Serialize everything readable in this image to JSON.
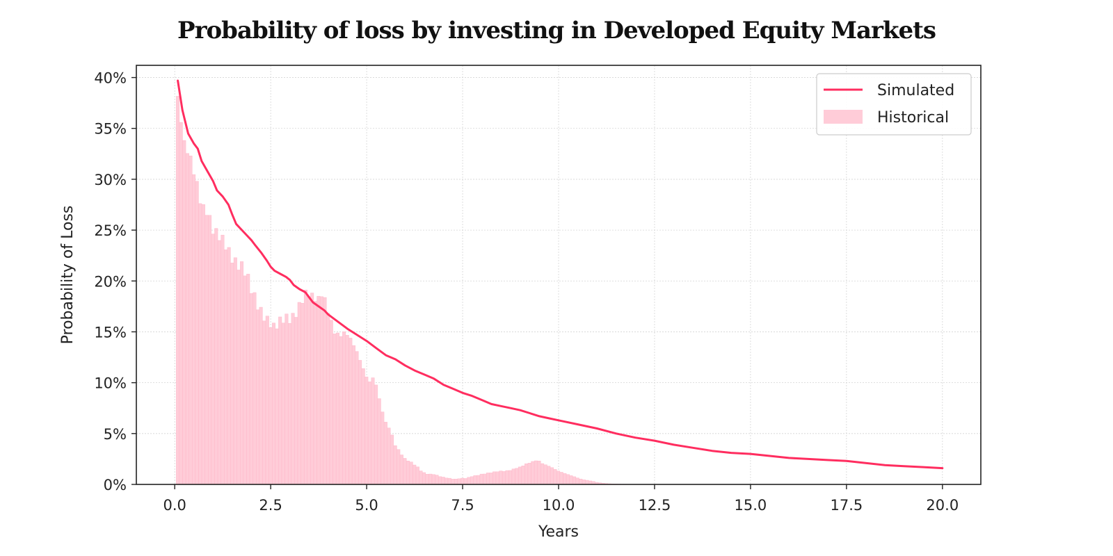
{
  "title": "Probability of loss by investing in Developed Equity Markets",
  "colors": {
    "simulated": "#ff2d5f",
    "historical": "#ffccd8",
    "historical_edge": "#ffb3c6",
    "grid": "#d4d4d4",
    "axis": "#222222"
  },
  "chart_data": {
    "type": "line",
    "title": "Probability of loss by investing in Developed Equity Markets",
    "xlabel": "Years",
    "ylabel": "Probability of Loss",
    "xlim": [
      -1.0,
      21.0
    ],
    "ylim": [
      0,
      0.412
    ],
    "x_ticks": [
      0.0,
      2.5,
      5.0,
      7.5,
      10.0,
      12.5,
      15.0,
      17.5,
      20.0
    ],
    "x_tick_labels": [
      "0.0",
      "2.5",
      "5.0",
      "7.5",
      "10.0",
      "12.5",
      "15.0",
      "17.5",
      "20.0"
    ],
    "y_ticks": [
      0,
      0.05,
      0.1,
      0.15,
      0.2,
      0.25,
      0.3,
      0.35,
      0.4
    ],
    "y_tick_labels": [
      "0%",
      "5%",
      "10%",
      "15%",
      "20%",
      "25%",
      "30%",
      "35%",
      "40%"
    ],
    "grid": true,
    "legend_position": "top-right",
    "legend": [
      "Simulated",
      "Historical"
    ],
    "series": [
      {
        "name": "Simulated",
        "type": "line",
        "points": [
          [
            0.08,
            0.397
          ],
          [
            0.2,
            0.368
          ],
          [
            0.35,
            0.345
          ],
          [
            0.5,
            0.335
          ],
          [
            0.6,
            0.33
          ],
          [
            0.7,
            0.318
          ],
          [
            0.85,
            0.308
          ],
          [
            1.0,
            0.298
          ],
          [
            1.1,
            0.289
          ],
          [
            1.25,
            0.283
          ],
          [
            1.4,
            0.275
          ],
          [
            1.5,
            0.265
          ],
          [
            1.6,
            0.256
          ],
          [
            1.75,
            0.25
          ],
          [
            1.9,
            0.244
          ],
          [
            2.0,
            0.24
          ],
          [
            2.1,
            0.235
          ],
          [
            2.25,
            0.228
          ],
          [
            2.4,
            0.22
          ],
          [
            2.5,
            0.214
          ],
          [
            2.6,
            0.21
          ],
          [
            2.75,
            0.207
          ],
          [
            2.9,
            0.204
          ],
          [
            3.0,
            0.201
          ],
          [
            3.1,
            0.196
          ],
          [
            3.25,
            0.192
          ],
          [
            3.4,
            0.189
          ],
          [
            3.5,
            0.184
          ],
          [
            3.6,
            0.179
          ],
          [
            3.75,
            0.175
          ],
          [
            3.9,
            0.171
          ],
          [
            4.0,
            0.167
          ],
          [
            4.25,
            0.16
          ],
          [
            4.5,
            0.153
          ],
          [
            4.75,
            0.147
          ],
          [
            5.0,
            0.141
          ],
          [
            5.25,
            0.134
          ],
          [
            5.5,
            0.127
          ],
          [
            5.75,
            0.123
          ],
          [
            6.0,
            0.117
          ],
          [
            6.25,
            0.112
          ],
          [
            6.5,
            0.108
          ],
          [
            6.75,
            0.104
          ],
          [
            7.0,
            0.098
          ],
          [
            7.25,
            0.094
          ],
          [
            7.5,
            0.09
          ],
          [
            7.75,
            0.087
          ],
          [
            8.0,
            0.083
          ],
          [
            8.25,
            0.079
          ],
          [
            8.5,
            0.077
          ],
          [
            8.75,
            0.075
          ],
          [
            9.0,
            0.073
          ],
          [
            9.25,
            0.07
          ],
          [
            9.5,
            0.067
          ],
          [
            9.75,
            0.065
          ],
          [
            10.0,
            0.063
          ],
          [
            10.5,
            0.059
          ],
          [
            11.0,
            0.055
          ],
          [
            11.5,
            0.05
          ],
          [
            12.0,
            0.046
          ],
          [
            12.5,
            0.043
          ],
          [
            13.0,
            0.039
          ],
          [
            13.5,
            0.036
          ],
          [
            14.0,
            0.033
          ],
          [
            14.5,
            0.031
          ],
          [
            15.0,
            0.03
          ],
          [
            15.5,
            0.028
          ],
          [
            16.0,
            0.026
          ],
          [
            16.5,
            0.025
          ],
          [
            17.0,
            0.024
          ],
          [
            17.5,
            0.023
          ],
          [
            18.0,
            0.021
          ],
          [
            18.5,
            0.019
          ],
          [
            19.0,
            0.018
          ],
          [
            19.5,
            0.017
          ],
          [
            20.0,
            0.016
          ]
        ]
      },
      {
        "name": "Historical",
        "type": "bar",
        "bar_width": 0.0833,
        "points": [
          [
            0.08,
            0.38
          ],
          [
            0.25,
            0.335
          ],
          [
            0.4,
            0.322
          ],
          [
            0.55,
            0.3
          ],
          [
            0.7,
            0.273
          ],
          [
            0.85,
            0.268
          ],
          [
            1.0,
            0.25
          ],
          [
            1.15,
            0.245
          ],
          [
            1.3,
            0.238
          ],
          [
            1.45,
            0.225
          ],
          [
            1.6,
            0.217
          ],
          [
            1.75,
            0.214
          ],
          [
            1.85,
            0.209
          ],
          [
            2.0,
            0.192
          ],
          [
            2.15,
            0.177
          ],
          [
            2.3,
            0.166
          ],
          [
            2.45,
            0.16
          ],
          [
            2.6,
            0.154
          ],
          [
            2.75,
            0.161
          ],
          [
            2.9,
            0.164
          ],
          [
            3.0,
            0.162
          ],
          [
            3.15,
            0.167
          ],
          [
            3.3,
            0.18
          ],
          [
            3.45,
            0.19
          ],
          [
            3.6,
            0.184
          ],
          [
            3.75,
            0.182
          ],
          [
            3.85,
            0.189
          ],
          [
            4.0,
            0.17
          ],
          [
            4.15,
            0.15
          ],
          [
            4.3,
            0.146
          ],
          [
            4.45,
            0.15
          ],
          [
            4.6,
            0.142
          ],
          [
            4.75,
            0.13
          ],
          [
            4.9,
            0.115
          ],
          [
            5.05,
            0.1
          ],
          [
            5.2,
            0.106
          ],
          [
            5.35,
            0.08
          ],
          [
            5.5,
            0.06
          ],
          [
            5.6,
            0.055
          ],
          [
            5.75,
            0.038
          ],
          [
            5.9,
            0.03
          ],
          [
            6.0,
            0.025
          ],
          [
            6.15,
            0.022
          ],
          [
            6.3,
            0.018
          ],
          [
            6.45,
            0.012
          ],
          [
            6.6,
            0.01
          ],
          [
            6.75,
            0.01
          ],
          [
            6.9,
            0.008
          ],
          [
            7.0,
            0.007
          ],
          [
            7.15,
            0.006
          ],
          [
            7.3,
            0.005
          ],
          [
            7.45,
            0.006
          ],
          [
            7.6,
            0.006
          ],
          [
            7.75,
            0.008
          ],
          [
            7.9,
            0.009
          ],
          [
            8.0,
            0.01
          ],
          [
            8.15,
            0.011
          ],
          [
            8.3,
            0.012
          ],
          [
            8.45,
            0.013
          ],
          [
            8.6,
            0.013
          ],
          [
            8.75,
            0.014
          ],
          [
            8.9,
            0.016
          ],
          [
            9.0,
            0.017
          ],
          [
            9.15,
            0.02
          ],
          [
            9.3,
            0.022
          ],
          [
            9.45,
            0.024
          ],
          [
            9.6,
            0.02
          ],
          [
            9.75,
            0.018
          ],
          [
            9.9,
            0.015
          ],
          [
            10.0,
            0.013
          ],
          [
            10.15,
            0.011
          ],
          [
            10.3,
            0.009
          ],
          [
            10.45,
            0.007
          ],
          [
            10.6,
            0.005
          ],
          [
            10.75,
            0.004
          ],
          [
            10.9,
            0.003
          ],
          [
            11.0,
            0.002
          ],
          [
            11.2,
            0.001
          ],
          [
            11.4,
            0.0005
          ],
          [
            11.6,
            0.0003
          ],
          [
            11.8,
            0.0002
          ]
        ]
      }
    ]
  }
}
